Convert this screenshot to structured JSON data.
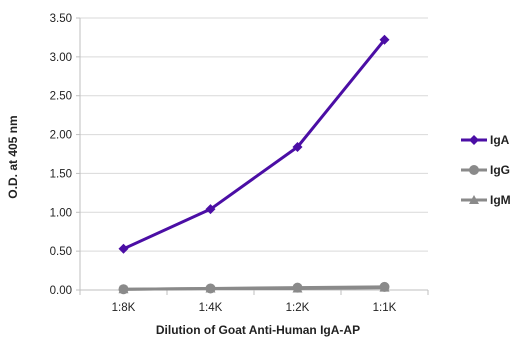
{
  "chart_data": {
    "type": "line",
    "title": "",
    "xlabel": "Dilution of Goat Anti-Human IgA-AP",
    "ylabel": "O.D. at 405 nm",
    "categories": [
      "1:8K",
      "1:4K",
      "1:2K",
      "1:1K"
    ],
    "ylim": [
      0,
      3.5
    ],
    "yticks": [
      "0.00",
      "0.50",
      "1.00",
      "1.50",
      "2.00",
      "2.50",
      "3.00",
      "3.50"
    ],
    "grid": "horizontal",
    "legend_position": "right",
    "series": [
      {
        "name": "IgA",
        "values": [
          0.53,
          1.04,
          1.84,
          3.22
        ],
        "color": "#4B0EA5",
        "marker": "diamond"
      },
      {
        "name": "IgG",
        "values": [
          0.01,
          0.02,
          0.03,
          0.04
        ],
        "color": "#8A8A8A",
        "marker": "circle"
      },
      {
        "name": "IgM",
        "values": [
          0.01,
          0.02,
          0.02,
          0.03
        ],
        "color": "#8A8A8A",
        "marker": "triangle"
      }
    ]
  }
}
